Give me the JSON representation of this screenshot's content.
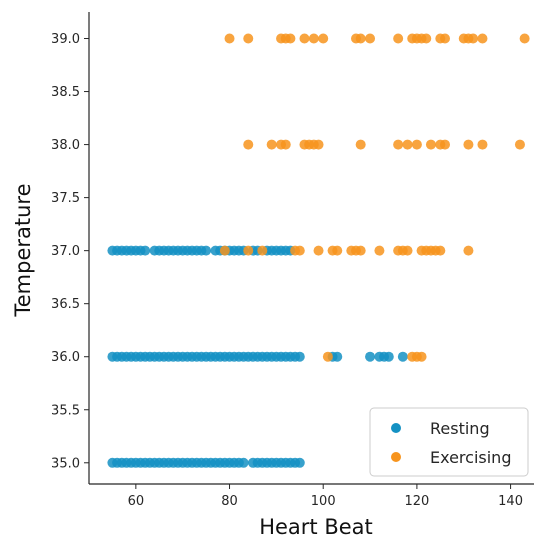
{
  "chart_data": {
    "type": "scatter",
    "title": "",
    "xlabel": "Heart Beat",
    "ylabel": "Temperature",
    "xlim": [
      50,
      145
    ],
    "ylim": [
      34.8,
      39.25
    ],
    "x_ticks": [
      60,
      80,
      100,
      120,
      140
    ],
    "y_ticks": [
      35.0,
      35.5,
      36.0,
      36.5,
      37.0,
      37.5,
      38.0,
      38.5,
      39.0
    ],
    "grid": false,
    "legend_position": "lower-right",
    "series": [
      {
        "name": "Resting",
        "color": "#1491c3",
        "points": [
          {
            "x": 55,
            "y": 35
          },
          {
            "x": 56,
            "y": 35
          },
          {
            "x": 57,
            "y": 35
          },
          {
            "x": 58,
            "y": 35
          },
          {
            "x": 59,
            "y": 35
          },
          {
            "x": 60,
            "y": 35
          },
          {
            "x": 61,
            "y": 35
          },
          {
            "x": 62,
            "y": 35
          },
          {
            "x": 63,
            "y": 35
          },
          {
            "x": 64,
            "y": 35
          },
          {
            "x": 65,
            "y": 35
          },
          {
            "x": 66,
            "y": 35
          },
          {
            "x": 67,
            "y": 35
          },
          {
            "x": 68,
            "y": 35
          },
          {
            "x": 69,
            "y": 35
          },
          {
            "x": 70,
            "y": 35
          },
          {
            "x": 71,
            "y": 35
          },
          {
            "x": 72,
            "y": 35
          },
          {
            "x": 73,
            "y": 35
          },
          {
            "x": 74,
            "y": 35
          },
          {
            "x": 75,
            "y": 35
          },
          {
            "x": 76,
            "y": 35
          },
          {
            "x": 77,
            "y": 35
          },
          {
            "x": 78,
            "y": 35
          },
          {
            "x": 79,
            "y": 35
          },
          {
            "x": 80,
            "y": 35
          },
          {
            "x": 81,
            "y": 35
          },
          {
            "x": 82,
            "y": 35
          },
          {
            "x": 83,
            "y": 35
          },
          {
            "x": 85,
            "y": 35
          },
          {
            "x": 86,
            "y": 35
          },
          {
            "x": 87,
            "y": 35
          },
          {
            "x": 88,
            "y": 35
          },
          {
            "x": 89,
            "y": 35
          },
          {
            "x": 90,
            "y": 35
          },
          {
            "x": 91,
            "y": 35
          },
          {
            "x": 92,
            "y": 35
          },
          {
            "x": 93,
            "y": 35
          },
          {
            "x": 94,
            "y": 35
          },
          {
            "x": 95,
            "y": 35
          },
          {
            "x": 55,
            "y": 36
          },
          {
            "x": 56,
            "y": 36
          },
          {
            "x": 57,
            "y": 36
          },
          {
            "x": 58,
            "y": 36
          },
          {
            "x": 59,
            "y": 36
          },
          {
            "x": 60,
            "y": 36
          },
          {
            "x": 61,
            "y": 36
          },
          {
            "x": 62,
            "y": 36
          },
          {
            "x": 63,
            "y": 36
          },
          {
            "x": 64,
            "y": 36
          },
          {
            "x": 65,
            "y": 36
          },
          {
            "x": 66,
            "y": 36
          },
          {
            "x": 67,
            "y": 36
          },
          {
            "x": 68,
            "y": 36
          },
          {
            "x": 69,
            "y": 36
          },
          {
            "x": 70,
            "y": 36
          },
          {
            "x": 71,
            "y": 36
          },
          {
            "x": 72,
            "y": 36
          },
          {
            "x": 73,
            "y": 36
          },
          {
            "x": 74,
            "y": 36
          },
          {
            "x": 75,
            "y": 36
          },
          {
            "x": 76,
            "y": 36
          },
          {
            "x": 77,
            "y": 36
          },
          {
            "x": 78,
            "y": 36
          },
          {
            "x": 79,
            "y": 36
          },
          {
            "x": 80,
            "y": 36
          },
          {
            "x": 81,
            "y": 36
          },
          {
            "x": 82,
            "y": 36
          },
          {
            "x": 83,
            "y": 36
          },
          {
            "x": 84,
            "y": 36
          },
          {
            "x": 85,
            "y": 36
          },
          {
            "x": 86,
            "y": 36
          },
          {
            "x": 87,
            "y": 36
          },
          {
            "x": 88,
            "y": 36
          },
          {
            "x": 89,
            "y": 36
          },
          {
            "x": 90,
            "y": 36
          },
          {
            "x": 91,
            "y": 36
          },
          {
            "x": 92,
            "y": 36
          },
          {
            "x": 93,
            "y": 36
          },
          {
            "x": 94,
            "y": 36
          },
          {
            "x": 95,
            "y": 36
          },
          {
            "x": 102,
            "y": 36
          },
          {
            "x": 103,
            "y": 36
          },
          {
            "x": 110,
            "y": 36
          },
          {
            "x": 112,
            "y": 36
          },
          {
            "x": 113,
            "y": 36
          },
          {
            "x": 114,
            "y": 36
          },
          {
            "x": 117,
            "y": 36
          },
          {
            "x": 55,
            "y": 37
          },
          {
            "x": 56,
            "y": 37
          },
          {
            "x": 57,
            "y": 37
          },
          {
            "x": 58,
            "y": 37
          },
          {
            "x": 59,
            "y": 37
          },
          {
            "x": 60,
            "y": 37
          },
          {
            "x": 61,
            "y": 37
          },
          {
            "x": 62,
            "y": 37
          },
          {
            "x": 64,
            "y": 37
          },
          {
            "x": 65,
            "y": 37
          },
          {
            "x": 66,
            "y": 37
          },
          {
            "x": 67,
            "y": 37
          },
          {
            "x": 68,
            "y": 37
          },
          {
            "x": 69,
            "y": 37
          },
          {
            "x": 70,
            "y": 37
          },
          {
            "x": 71,
            "y": 37
          },
          {
            "x": 72,
            "y": 37
          },
          {
            "x": 73,
            "y": 37
          },
          {
            "x": 74,
            "y": 37
          },
          {
            "x": 75,
            "y": 37
          },
          {
            "x": 77,
            "y": 37
          },
          {
            "x": 78,
            "y": 37
          },
          {
            "x": 79,
            "y": 37
          },
          {
            "x": 80,
            "y": 37
          },
          {
            "x": 81,
            "y": 37
          },
          {
            "x": 82,
            "y": 37
          },
          {
            "x": 83,
            "y": 37
          },
          {
            "x": 85,
            "y": 37
          },
          {
            "x": 86,
            "y": 37
          },
          {
            "x": 88,
            "y": 37
          },
          {
            "x": 89,
            "y": 37
          },
          {
            "x": 90,
            "y": 37
          },
          {
            "x": 91,
            "y": 37
          },
          {
            "x": 92,
            "y": 37
          },
          {
            "x": 93,
            "y": 37
          }
        ]
      },
      {
        "name": "Exercising",
        "color": "#f7941d",
        "points": [
          {
            "x": 101,
            "y": 36
          },
          {
            "x": 119,
            "y": 36
          },
          {
            "x": 120,
            "y": 36
          },
          {
            "x": 121,
            "y": 36
          },
          {
            "x": 79,
            "y": 37
          },
          {
            "x": 84,
            "y": 37
          },
          {
            "x": 87,
            "y": 37
          },
          {
            "x": 94,
            "y": 37
          },
          {
            "x": 95,
            "y": 37
          },
          {
            "x": 99,
            "y": 37
          },
          {
            "x": 102,
            "y": 37
          },
          {
            "x": 103,
            "y": 37
          },
          {
            "x": 106,
            "y": 37
          },
          {
            "x": 107,
            "y": 37
          },
          {
            "x": 108,
            "y": 37
          },
          {
            "x": 112,
            "y": 37
          },
          {
            "x": 116,
            "y": 37
          },
          {
            "x": 117,
            "y": 37
          },
          {
            "x": 118,
            "y": 37
          },
          {
            "x": 121,
            "y": 37
          },
          {
            "x": 122,
            "y": 37
          },
          {
            "x": 123,
            "y": 37
          },
          {
            "x": 124,
            "y": 37
          },
          {
            "x": 125,
            "y": 37
          },
          {
            "x": 131,
            "y": 37
          },
          {
            "x": 84,
            "y": 38
          },
          {
            "x": 89,
            "y": 38
          },
          {
            "x": 91,
            "y": 38
          },
          {
            "x": 92,
            "y": 38
          },
          {
            "x": 96,
            "y": 38
          },
          {
            "x": 97,
            "y": 38
          },
          {
            "x": 98,
            "y": 38
          },
          {
            "x": 99,
            "y": 38
          },
          {
            "x": 108,
            "y": 38
          },
          {
            "x": 116,
            "y": 38
          },
          {
            "x": 118,
            "y": 38
          },
          {
            "x": 120,
            "y": 38
          },
          {
            "x": 123,
            "y": 38
          },
          {
            "x": 125,
            "y": 38
          },
          {
            "x": 126,
            "y": 38
          },
          {
            "x": 131,
            "y": 38
          },
          {
            "x": 134,
            "y": 38
          },
          {
            "x": 142,
            "y": 38
          },
          {
            "x": 80,
            "y": 39
          },
          {
            "x": 84,
            "y": 39
          },
          {
            "x": 91,
            "y": 39
          },
          {
            "x": 92,
            "y": 39
          },
          {
            "x": 93,
            "y": 39
          },
          {
            "x": 96,
            "y": 39
          },
          {
            "x": 98,
            "y": 39
          },
          {
            "x": 100,
            "y": 39
          },
          {
            "x": 107,
            "y": 39
          },
          {
            "x": 108,
            "y": 39
          },
          {
            "x": 110,
            "y": 39
          },
          {
            "x": 116,
            "y": 39
          },
          {
            "x": 119,
            "y": 39
          },
          {
            "x": 120,
            "y": 39
          },
          {
            "x": 121,
            "y": 39
          },
          {
            "x": 122,
            "y": 39
          },
          {
            "x": 125,
            "y": 39
          },
          {
            "x": 126,
            "y": 39
          },
          {
            "x": 130,
            "y": 39
          },
          {
            "x": 131,
            "y": 39
          },
          {
            "x": 132,
            "y": 39
          },
          {
            "x": 134,
            "y": 39
          },
          {
            "x": 143,
            "y": 39
          }
        ]
      }
    ]
  }
}
